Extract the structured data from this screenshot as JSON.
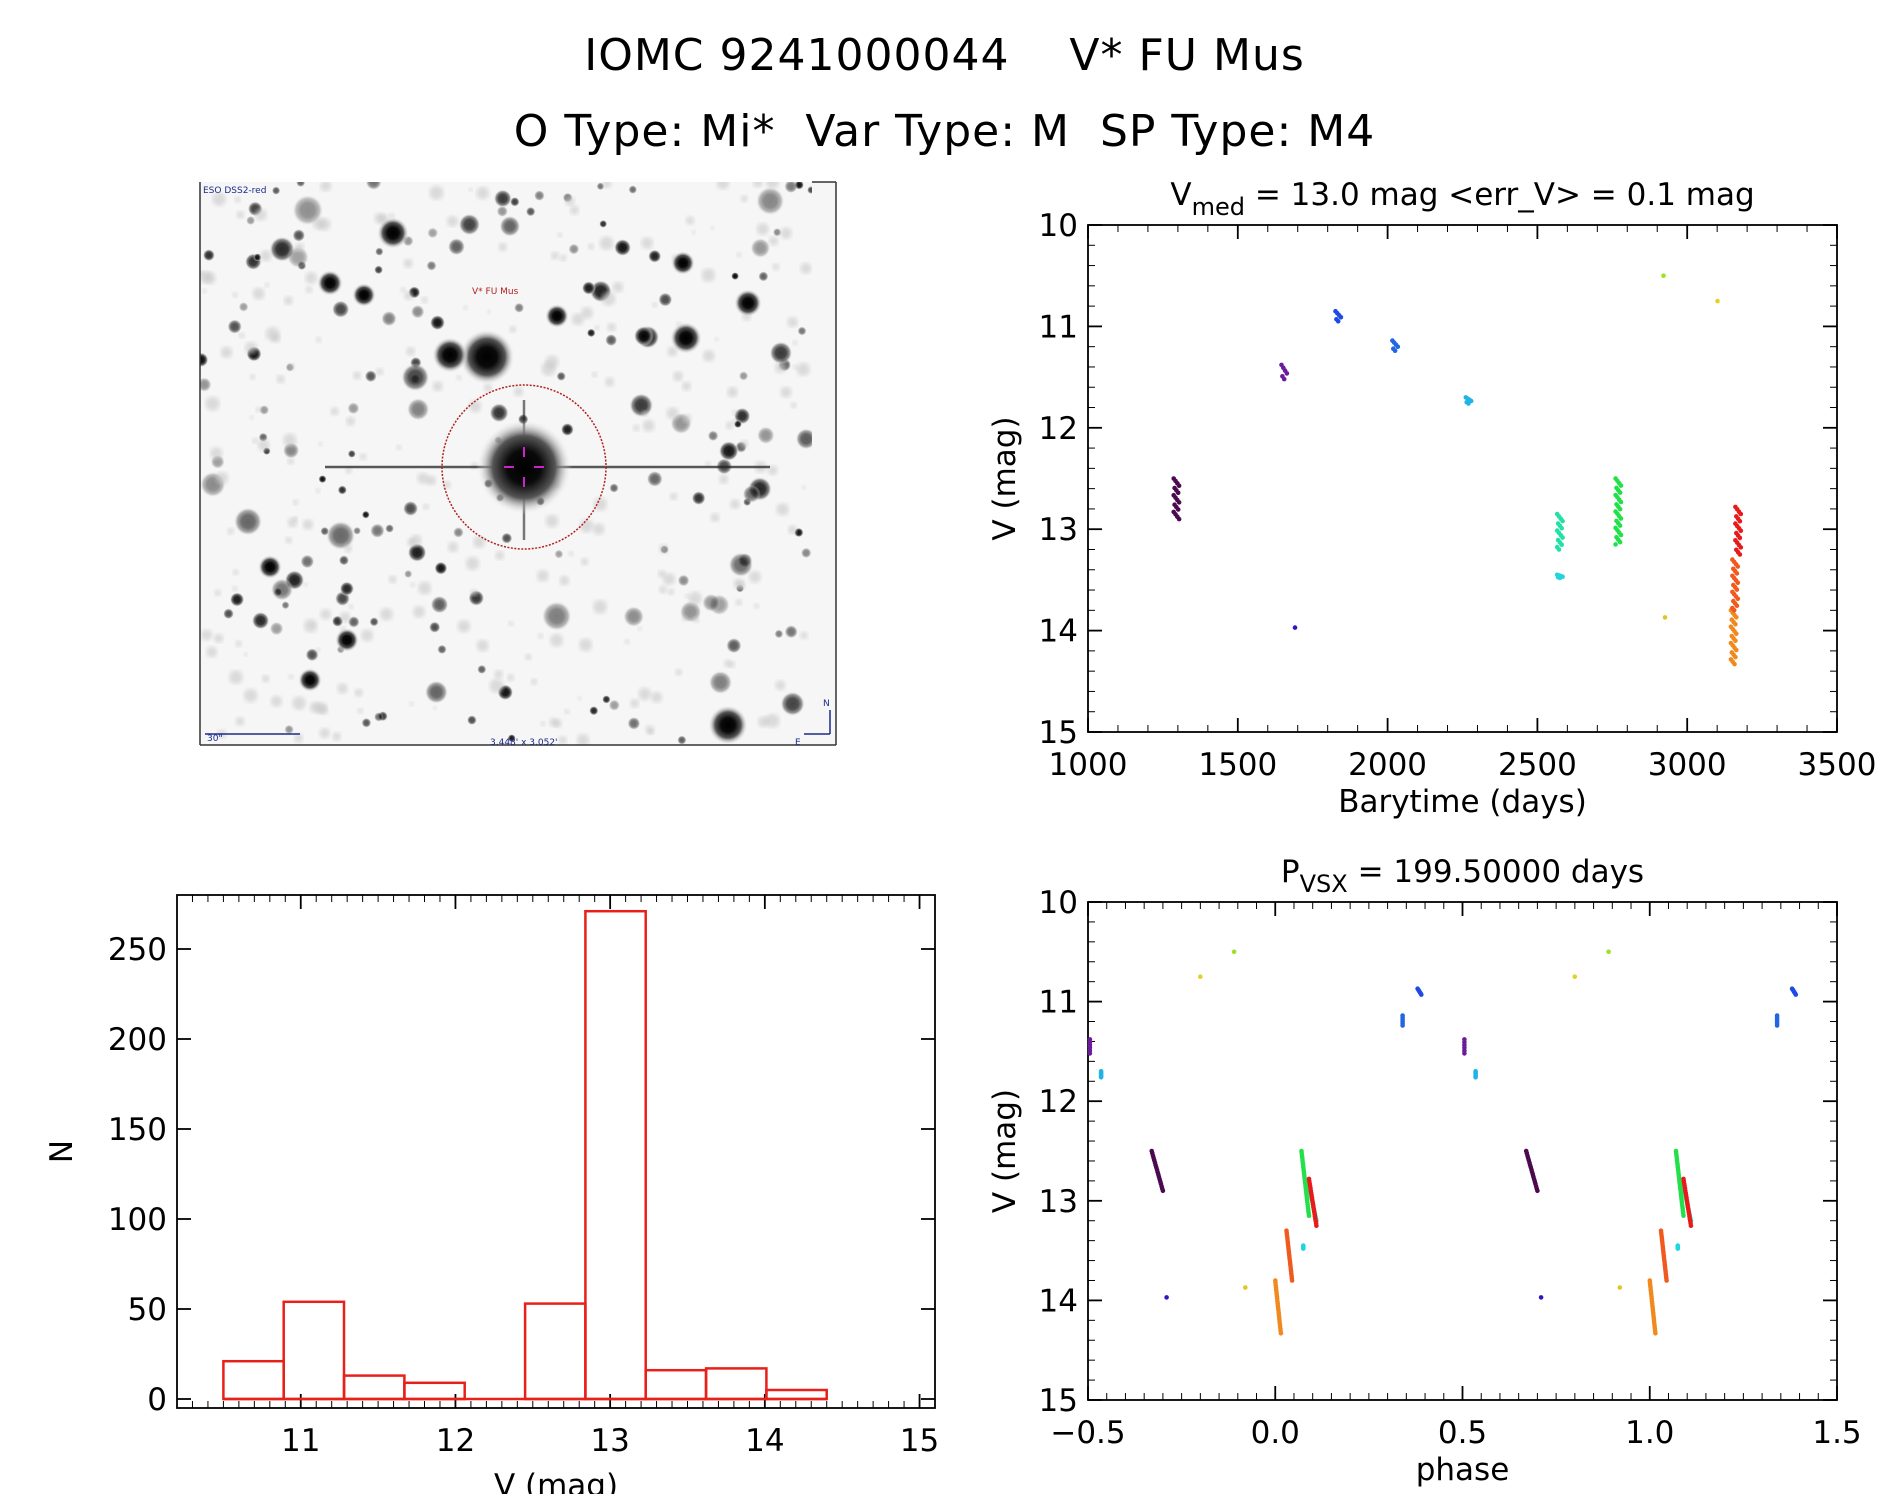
{
  "header": {
    "line1": "IOMC 9241000044    V* FU Mus",
    "line2": "O Type: Mi*  Var Type: M  SP Type: M4"
  },
  "finder": {
    "survey_label": "ESO DSS2-red",
    "target_label": "V* FU Mus",
    "scale_label": "30\"",
    "fov_label": "3.448' x 3.052'",
    "north_label": "N",
    "east_label": "E"
  },
  "colors": {
    "hist": "#e8201a",
    "circle": "#b22222",
    "crosshair": "#cc22cc",
    "finder_text": "#1b2a8a",
    "finder_target_text": "#b22222"
  },
  "chart_data": [
    {
      "id": "lightcurve",
      "type": "scatter",
      "title_main": "V",
      "title_sub": "med",
      "title_rest": " = 13.0 mag <err_V> = 0.1 mag",
      "xlabel": "Barytime (days)",
      "ylabel": "V (mag)",
      "xlim": [
        1000,
        3500
      ],
      "ylim": [
        10,
        15
      ],
      "y_inverted": true,
      "xticks": [
        1000,
        1500,
        2000,
        2500,
        3000,
        3500
      ],
      "yticks": [
        10,
        11,
        12,
        13,
        14,
        15
      ],
      "groups": [
        {
          "x": 1295,
          "y_min": 12.5,
          "y_max": 12.9,
          "color": "#4b0a4f"
        },
        {
          "x": 1655,
          "y_min": 11.38,
          "y_max": 11.52,
          "color": "#6a1c9a"
        },
        {
          "x": 1700,
          "y_min": 13.97,
          "y_max": 13.97,
          "color": "#2a18c4"
        },
        {
          "x": 1835,
          "y_min": 10.85,
          "y_max": 10.95,
          "color": "#1e4ae6"
        },
        {
          "x": 2025,
          "y_min": 11.14,
          "y_max": 11.24,
          "color": "#2266e0"
        },
        {
          "x": 2270,
          "y_min": 11.7,
          "y_max": 11.76,
          "color": "#20b4e6"
        },
        {
          "x": 2575,
          "y_min": 12.85,
          "y_max": 13.2,
          "color": "#22e0a6"
        },
        {
          "x": 2575,
          "y_min": 13.45,
          "y_max": 13.48,
          "color": "#22d4e0"
        },
        {
          "x": 2770,
          "y_min": 12.5,
          "y_max": 13.15,
          "color": "#22e04a"
        },
        {
          "x": 2930,
          "y_min": 10.5,
          "y_max": 10.5,
          "color": "#9ee022"
        },
        {
          "x": 2935,
          "y_min": 13.87,
          "y_max": 13.87,
          "color": "#e0c622"
        },
        {
          "x": 3110,
          "y_min": 10.75,
          "y_max": 10.75,
          "color": "#e0d422"
        },
        {
          "x": 3155,
          "y_min": 13.8,
          "y_max": 14.33,
          "color": "#f08a1e"
        },
        {
          "x": 3160,
          "y_min": 13.3,
          "y_max": 13.8,
          "color": "#f05a1e"
        },
        {
          "x": 3170,
          "y_min": 12.78,
          "y_max": 13.25,
          "color": "#e81a1a"
        }
      ]
    },
    {
      "id": "histogram",
      "type": "bar",
      "xlabel": "V (mag)",
      "ylabel": "N",
      "xlim": [
        10.2,
        15.1
      ],
      "ylim": [
        -5,
        280
      ],
      "xticks": [
        11,
        12,
        13,
        14,
        15
      ],
      "yticks": [
        0,
        50,
        100,
        150,
        200,
        250
      ],
      "bin_edges": [
        10.5,
        10.89,
        11.28,
        11.67,
        12.06,
        12.45,
        12.84,
        13.23,
        13.62,
        14.01,
        14.4
      ],
      "counts": [
        21,
        54,
        13,
        9,
        0,
        53,
        271,
        16,
        17,
        5
      ]
    },
    {
      "id": "phased",
      "type": "scatter",
      "title_main": "P",
      "title_sub": "VSX",
      "title_rest": " = 199.50000 days",
      "xlabel": "phase",
      "ylabel": "V (mag)",
      "xlim": [
        -0.5,
        1.5
      ],
      "ylim": [
        10,
        15
      ],
      "y_inverted": true,
      "xticks": [
        -0.5,
        0.0,
        0.5,
        1.0,
        1.5
      ],
      "xtick_labels": [
        "−0.5",
        "0.0",
        "0.5",
        "1.0",
        "1.5"
      ],
      "yticks": [
        10,
        11,
        12,
        13,
        14,
        15
      ],
      "groups": [
        {
          "x0": -0.33,
          "x1": -0.3,
          "y_min": 12.5,
          "y_max": 12.9,
          "color": "#4b0a4f"
        },
        {
          "x0": -0.495,
          "x1": -0.495,
          "y_min": 11.38,
          "y_max": 11.52,
          "color": "#6a1c9a"
        },
        {
          "x0": -0.29,
          "x1": -0.29,
          "y_min": 13.97,
          "y_max": 13.97,
          "color": "#2a18c4"
        },
        {
          "x0": 0.38,
          "x1": 0.39,
          "y_min": 10.87,
          "y_max": 10.93,
          "color": "#1e4ae6"
        },
        {
          "x0": 0.34,
          "x1": 0.34,
          "y_min": 11.14,
          "y_max": 11.24,
          "color": "#2266e0"
        },
        {
          "x0": -0.465,
          "x1": -0.465,
          "y_min": 11.7,
          "y_max": 11.76,
          "color": "#20b4e6"
        },
        {
          "x0": 0.09,
          "x1": 0.11,
          "y_min": 12.85,
          "y_max": 13.2,
          "color": "#22e0a6"
        },
        {
          "x0": 0.075,
          "x1": 0.075,
          "y_min": 13.45,
          "y_max": 13.48,
          "color": "#22d4e0"
        },
        {
          "x0": 0.07,
          "x1": 0.09,
          "y_min": 12.5,
          "y_max": 13.15,
          "color": "#22e04a"
        },
        {
          "x0": -0.11,
          "x1": -0.11,
          "y_min": 10.5,
          "y_max": 10.5,
          "color": "#9ee022"
        },
        {
          "x0": -0.08,
          "x1": -0.08,
          "y_min": 13.87,
          "y_max": 13.87,
          "color": "#e0c622"
        },
        {
          "x0": -0.2,
          "x1": -0.2,
          "y_min": 10.75,
          "y_max": 10.75,
          "color": "#e0d422"
        },
        {
          "x0": 0.0,
          "x1": 0.015,
          "y_min": 13.8,
          "y_max": 14.33,
          "color": "#f08a1e"
        },
        {
          "x0": 0.03,
          "x1": 0.045,
          "y_min": 13.3,
          "y_max": 13.8,
          "color": "#f05a1e"
        },
        {
          "x0": 0.09,
          "x1": 0.11,
          "y_min": 12.78,
          "y_max": 13.25,
          "color": "#e81a1a"
        }
      ]
    }
  ]
}
